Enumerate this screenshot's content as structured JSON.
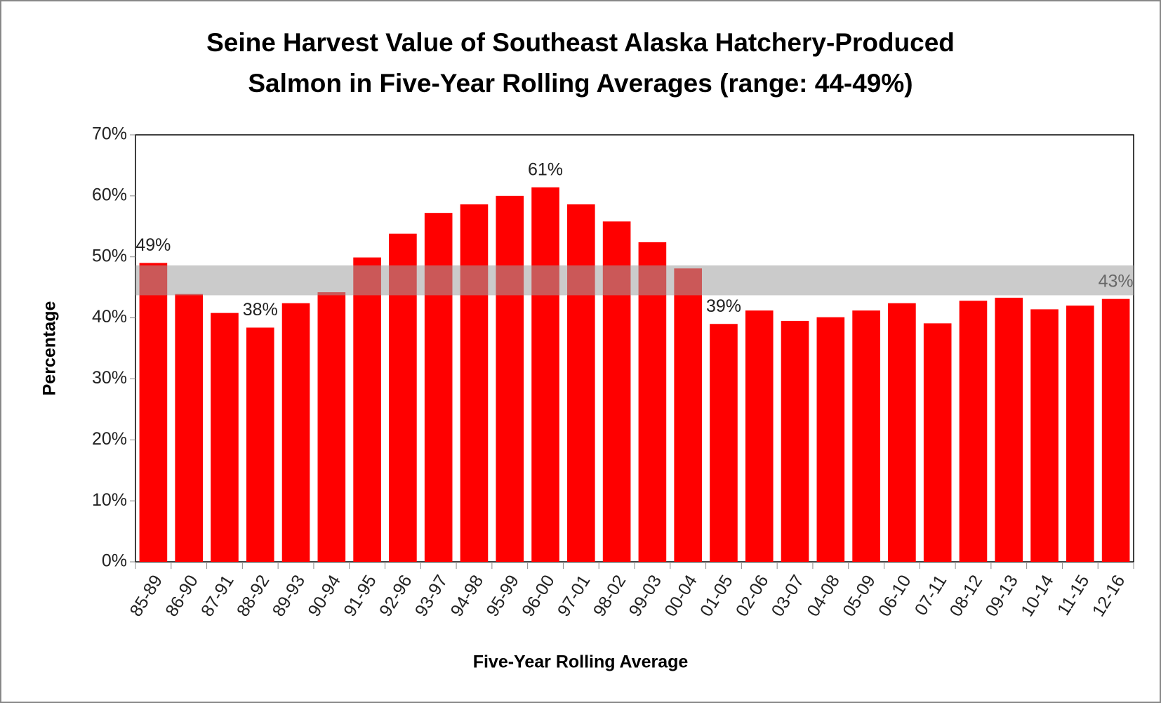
{
  "chart_data": {
    "type": "bar",
    "title": [
      "Seine Harvest Value of Southeast Alaska Hatchery-Produced",
      "Salmon in Five-Year Rolling Averages (range: 44-49%)"
    ],
    "x_label": "Five-Year Rolling Average",
    "y_label": "Percentage",
    "categories": [
      "85-89",
      "86-90",
      "87-91",
      "88-92",
      "89-93",
      "90-94",
      "91-95",
      "92-96",
      "93-97",
      "94-98",
      "95-99",
      "96-00",
      "97-01",
      "98-02",
      "99-03",
      "00-04",
      "01-05",
      "02-06",
      "03-07",
      "04-08",
      "05-09",
      "06-10",
      "07-11",
      "08-12",
      "09-13",
      "10-14",
      "11-15",
      "12-16"
    ],
    "values": [
      49.0,
      43.9,
      40.8,
      38.4,
      42.4,
      44.2,
      49.9,
      53.8,
      57.2,
      58.6,
      60.0,
      61.4,
      58.6,
      55.8,
      52.4,
      48.1,
      39.0,
      41.2,
      39.5,
      40.1,
      41.2,
      42.4,
      39.1,
      42.8,
      43.3,
      41.4,
      42.0,
      43.1
    ],
    "value_labels": [
      "49%",
      null,
      null,
      "38%",
      null,
      null,
      null,
      null,
      null,
      null,
      null,
      "61%",
      null,
      null,
      null,
      null,
      "39%",
      null,
      null,
      null,
      null,
      null,
      null,
      null,
      null,
      null,
      null,
      "43%"
    ],
    "color": "#ff0000",
    "band": [
      43.7,
      48.6
    ],
    "band_color": "#a0a0a0",
    "ylim": [
      0,
      70
    ],
    "yticks": [
      {
        "value": 0,
        "label": "0%"
      },
      {
        "value": 10,
        "label": "10%"
      },
      {
        "value": 20,
        "label": "20%"
      },
      {
        "value": 30,
        "label": "30%"
      },
      {
        "value": 40,
        "label": "40%"
      },
      {
        "value": 50,
        "label": "50%"
      },
      {
        "value": 60,
        "label": "60%"
      },
      {
        "value": 70,
        "label": "70%"
      }
    ]
  }
}
